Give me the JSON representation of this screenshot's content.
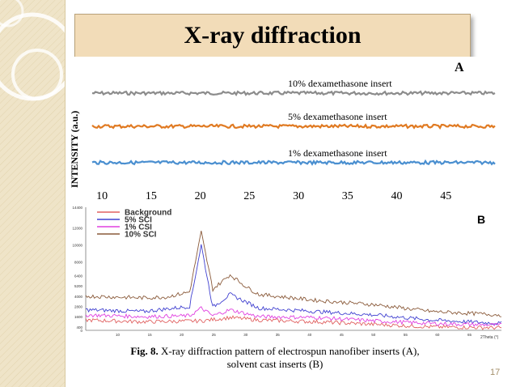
{
  "slide": {
    "title": "X-ray diffraction",
    "caption_label": "Fig. 8.",
    "caption_text": " X-ray diffraction pattern of electrospun nanofiber inserts (A),",
    "caption_text2": "solvent cast inserts (B)",
    "page_number": "17"
  },
  "colors": {
    "accent": "#f2dcb8",
    "sidebar": "#efe4c8"
  },
  "chart_data": [
    {
      "type": "line",
      "panel_label": "A",
      "ylabel": "INTENSITY (a.u.)",
      "xlabel": "",
      "xlim": [
        9,
        50
      ],
      "x_ticks": [
        10,
        15,
        20,
        25,
        30,
        35,
        40,
        45
      ],
      "series": [
        {
          "name": "10% dexamethasone insert",
          "color": "#8c8c8c",
          "level": 0.82
        },
        {
          "name": "5% dexamethasone insert",
          "color": "#e07a22",
          "level": 0.5
        },
        {
          "name": "1% dexamethasone insert",
          "color": "#4a8fd0",
          "level": 0.15
        }
      ]
    },
    {
      "type": "line",
      "panel_label": "B",
      "xlim": [
        0,
        72
      ],
      "ylim": [
        0,
        14400
      ],
      "y_ticks": [
        0,
        400,
        1600,
        2800,
        4000,
        5200,
        6400,
        8000,
        10000,
        12000,
        14400
      ],
      "x_ticks": [
        10,
        15,
        20,
        25,
        30,
        35,
        40,
        45,
        50,
        55,
        60,
        65
      ],
      "x_unit": "2Theta (°)",
      "legend_position": "top-left",
      "series": [
        {
          "name": "Background",
          "color": "#e06060",
          "x": [
            0,
            10,
            20,
            25,
            30,
            40,
            50,
            60,
            72
          ],
          "y": [
            1200,
            1000,
            1100,
            1500,
            1200,
            1000,
            700,
            400,
            300
          ]
        },
        {
          "name": "5% SCI",
          "color": "#4040d0",
          "x": [
            0,
            10,
            18,
            20,
            22,
            25,
            30,
            40,
            50,
            60,
            72
          ],
          "y": [
            2400,
            2200,
            2800,
            10000,
            2700,
            4200,
            2600,
            2200,
            1800,
            1200,
            800
          ]
        },
        {
          "name": "1% CSI",
          "color": "#e040e0",
          "x": [
            0,
            10,
            18,
            20,
            22,
            25,
            30,
            40,
            50,
            60,
            72
          ],
          "y": [
            1800,
            1600,
            1700,
            2600,
            1700,
            2400,
            1600,
            1500,
            1100,
            800,
            600
          ]
        },
        {
          "name": "10% SCI",
          "color": "#8a5a3a",
          "x": [
            0,
            10,
            14,
            16,
            18,
            20,
            22,
            25,
            28,
            30,
            40,
            50,
            60,
            72
          ],
          "y": [
            4000,
            3800,
            3900,
            4200,
            4500,
            11500,
            4800,
            6500,
            5000,
            4200,
            3500,
            3000,
            2200,
            1800
          ]
        }
      ]
    }
  ]
}
